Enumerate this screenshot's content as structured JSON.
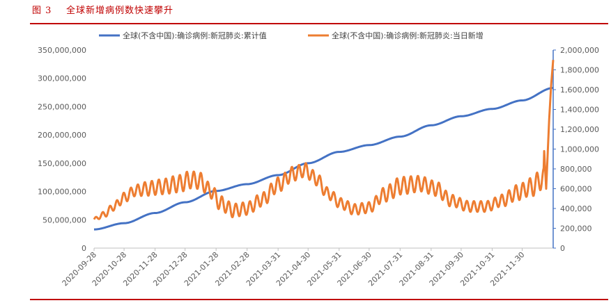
{
  "figure": {
    "label": "图 3",
    "title": "全球新增病例数快速攀升"
  },
  "colors": {
    "title_red": "#c00000",
    "cumulative": "#4472c4",
    "daily": "#ed7d31",
    "axis": "#4472c4",
    "tick_text": "#595959"
  },
  "chart_data": {
    "type": "line",
    "title": "",
    "grid": false,
    "legend_position": "top",
    "x_axis": {
      "type": "date",
      "range": [
        "2020-09-28",
        "2021-12-31"
      ],
      "tick_labels": [
        "2020-09-28",
        "2020-10-28",
        "2020-11-28",
        "2020-12-28",
        "2021-01-28",
        "2021-02-28",
        "2021-03-31",
        "2021-04-30",
        "2021-05-31",
        "2021-06-30",
        "2021-07-31",
        "2021-08-31",
        "2021-09-30",
        "2021-10-31",
        "2021-11-30"
      ]
    },
    "y_left": {
      "range": [
        0,
        350000000
      ],
      "tick_labels": [
        "0",
        "50,000,000",
        "100,000,000",
        "150,000,000",
        "200,000,000",
        "250,000,000",
        "300,000,000",
        "350,000,000"
      ]
    },
    "y_right": {
      "range": [
        0,
        2000000
      ],
      "tick_labels": [
        "0",
        "200,000",
        "400,000",
        "600,000",
        "800,000",
        "1,000,000",
        "1,200,000",
        "1,400,000",
        "1,600,000",
        "1,800,000",
        "2,000,000"
      ]
    },
    "series": [
      {
        "name": "全球(不含中国):确诊病例:新冠肺炎:累计值",
        "axis": "left",
        "color": "#4472c4",
        "style": "smooth",
        "points": [
          [
            "2020-09-28",
            33000000
          ],
          [
            "2020-10-28",
            44000000
          ],
          [
            "2020-11-28",
            62000000
          ],
          [
            "2020-12-28",
            81000000
          ],
          [
            "2021-01-28",
            101000000
          ],
          [
            "2021-02-28",
            113000000
          ],
          [
            "2021-03-31",
            129000000
          ],
          [
            "2021-04-30",
            150000000
          ],
          [
            "2021-05-31",
            170000000
          ],
          [
            "2021-06-30",
            182000000
          ],
          [
            "2021-07-31",
            197000000
          ],
          [
            "2021-08-31",
            217000000
          ],
          [
            "2021-09-30",
            233000000
          ],
          [
            "2021-10-31",
            246000000
          ],
          [
            "2021-11-30",
            261000000
          ],
          [
            "2021-12-31",
            283000000
          ]
        ]
      },
      {
        "name": "全球(不含中国):确诊病例:新冠肺炎:当日新增",
        "axis": "right",
        "color": "#ed7d31",
        "style": "weekly-oscillating",
        "trend_points": [
          [
            "2020-09-28",
            290000
          ],
          [
            "2020-10-08",
            340000
          ],
          [
            "2020-10-18",
            420000
          ],
          [
            "2020-10-28",
            510000
          ],
          [
            "2020-11-08",
            580000
          ],
          [
            "2020-11-20",
            600000
          ],
          [
            "2020-12-05",
            620000
          ],
          [
            "2020-12-22",
            650000
          ],
          [
            "2021-01-02",
            690000
          ],
          [
            "2021-01-12",
            680000
          ],
          [
            "2021-01-22",
            580000
          ],
          [
            "2021-02-02",
            450000
          ],
          [
            "2021-02-14",
            380000
          ],
          [
            "2021-02-28",
            400000
          ],
          [
            "2021-03-15",
            490000
          ],
          [
            "2021-03-31",
            640000
          ],
          [
            "2021-04-15",
            750000
          ],
          [
            "2021-04-27",
            790000
          ],
          [
            "2021-05-08",
            700000
          ],
          [
            "2021-05-20",
            550000
          ],
          [
            "2021-06-02",
            450000
          ],
          [
            "2021-06-15",
            390000
          ],
          [
            "2021-06-30",
            410000
          ],
          [
            "2021-07-15",
            540000
          ],
          [
            "2021-08-01",
            630000
          ],
          [
            "2021-08-20",
            650000
          ],
          [
            "2021-09-05",
            600000
          ],
          [
            "2021-09-20",
            480000
          ],
          [
            "2021-10-08",
            420000
          ],
          [
            "2021-10-25",
            420000
          ],
          [
            "2021-11-10",
            480000
          ],
          [
            "2021-11-25",
            560000
          ],
          [
            "2021-12-10",
            620000
          ],
          [
            "2021-12-20",
            700000
          ]
        ],
        "amplitude": [
          [
            "2020-09-28",
            20000
          ],
          [
            "2020-10-28",
            50000
          ],
          [
            "2020-11-28",
            75000
          ],
          [
            "2020-12-28",
            90000
          ],
          [
            "2021-01-28",
            75000
          ],
          [
            "2021-02-28",
            65000
          ],
          [
            "2021-03-31",
            75000
          ],
          [
            "2021-04-30",
            70000
          ],
          [
            "2021-05-31",
            55000
          ],
          [
            "2021-06-30",
            55000
          ],
          [
            "2021-07-31",
            90000
          ],
          [
            "2021-08-31",
            75000
          ],
          [
            "2021-09-30",
            55000
          ],
          [
            "2021-10-31",
            55000
          ],
          [
            "2021-11-30",
            80000
          ],
          [
            "2021-12-20",
            110000
          ]
        ],
        "end_points": [
          [
            "2021-12-22",
            980000
          ],
          [
            "2021-12-24",
            600000
          ],
          [
            "2021-12-27",
            1300000
          ],
          [
            "2021-12-29",
            1650000
          ],
          [
            "2021-12-31",
            1900000
          ]
        ]
      }
    ]
  }
}
